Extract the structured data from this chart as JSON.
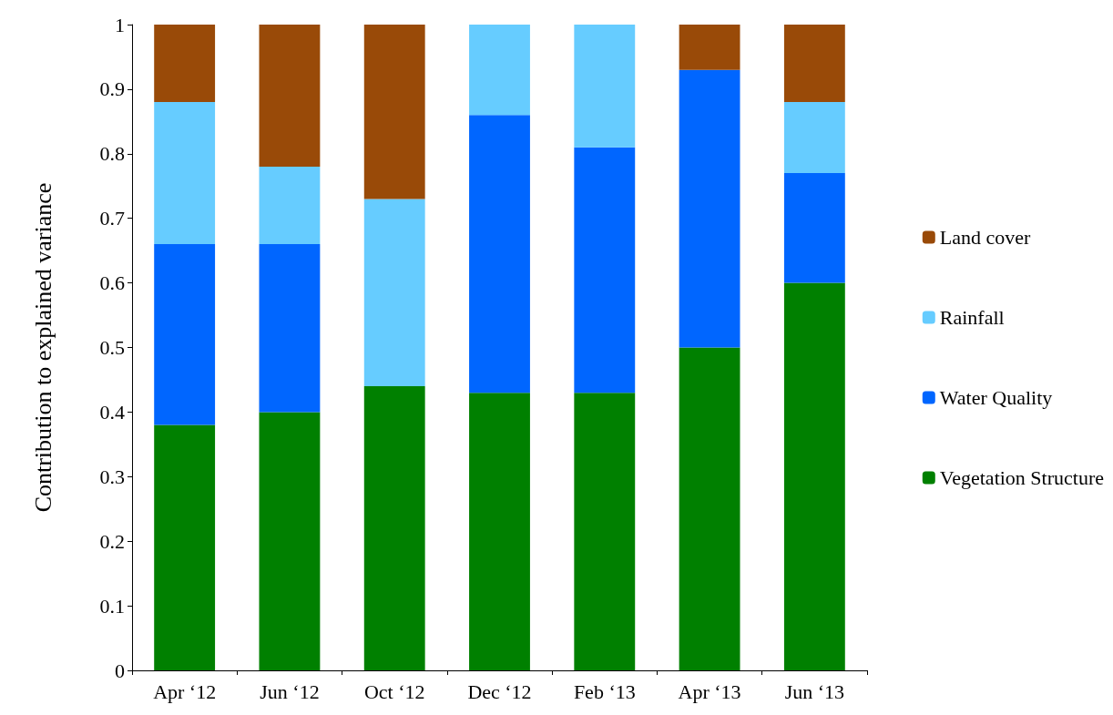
{
  "chart_data": {
    "type": "bar",
    "stacked": true,
    "ylabel": "Contribution to explained variance",
    "categories": [
      "Apr ‘12",
      "Jun ‘12",
      "Oct ‘12",
      "Dec ‘12",
      "Feb ‘13",
      "Apr ‘13",
      "Jun ‘13"
    ],
    "series": [
      {
        "name": "Vegetation Structure",
        "color": "#008000",
        "values": [
          0.38,
          0.4,
          0.44,
          0.43,
          0.43,
          0.5,
          0.6
        ]
      },
      {
        "name": "Water Quality",
        "color": "#0066ff",
        "values": [
          0.28,
          0.26,
          0,
          0.43,
          0.38,
          0.43,
          0.17
        ]
      },
      {
        "name": "Rainfall",
        "color": "#66ccff",
        "values": [
          0.22,
          0.12,
          0.29,
          0.14,
          0.19,
          0,
          0.11
        ]
      },
      {
        "name": "Land cover",
        "color": "#994a08",
        "values": [
          0.12,
          0.22,
          0.27,
          0,
          0,
          0.07,
          0.12
        ]
      }
    ],
    "ylim": [
      0,
      1
    ],
    "yticks": [
      0,
      0.1,
      0.2,
      0.3,
      0.4,
      0.5,
      0.6,
      0.7,
      0.8,
      0.9,
      1
    ],
    "grid": false,
    "legend": "right"
  }
}
